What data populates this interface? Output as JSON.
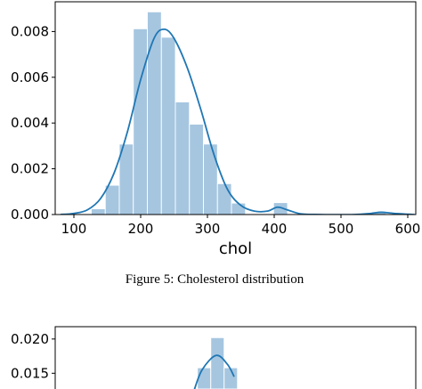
{
  "caption": "Figure 5: Cholesterol distribution",
  "chart_data": [
    {
      "type": "histogram",
      "overlay": "kde line",
      "xlabel": "chol",
      "ylabel": "",
      "xlim": [
        72,
        612
      ],
      "ylim": [
        0,
        0.0093
      ],
      "xticks": [
        "100",
        "200",
        "300",
        "400",
        "500",
        "600"
      ],
      "yticks": [
        "0.000",
        "0.002",
        "0.004",
        "0.006",
        "0.008"
      ],
      "bars": {
        "color": "#a6c6e0",
        "bins": [
          {
            "x0": 126,
            "x1": 147,
            "value": 0.00025
          },
          {
            "x0": 147,
            "x1": 168,
            "value": 0.00128
          },
          {
            "x0": 168,
            "x1": 189,
            "value": 0.00308
          },
          {
            "x0": 189,
            "x1": 210,
            "value": 0.00812
          },
          {
            "x0": 210,
            "x1": 231,
            "value": 0.00886
          },
          {
            "x0": 231,
            "x1": 252,
            "value": 0.00775
          },
          {
            "x0": 252,
            "x1": 273,
            "value": 0.00492
          },
          {
            "x0": 273,
            "x1": 294,
            "value": 0.00395
          },
          {
            "x0": 294,
            "x1": 315,
            "value": 0.00308
          },
          {
            "x0": 315,
            "x1": 336,
            "value": 0.00135
          },
          {
            "x0": 336,
            "x1": 357,
            "value": 0.0005
          },
          {
            "x0": 357,
            "x1": 378,
            "value": 0.0
          },
          {
            "x0": 378,
            "x1": 399,
            "value": 0.0
          },
          {
            "x0": 399,
            "x1": 420,
            "value": 0.00052
          },
          {
            "x0": 546,
            "x1": 567,
            "value": 0.00012
          }
        ]
      },
      "kde": {
        "color": "#1f77b4",
        "points": [
          [
            80,
            0.0
          ],
          [
            100,
            5e-05
          ],
          [
            120,
            0.0002
          ],
          [
            140,
            0.0007
          ],
          [
            160,
            0.0018
          ],
          [
            180,
            0.0036
          ],
          [
            200,
            0.0059
          ],
          [
            220,
            0.0077
          ],
          [
            235,
            0.0081
          ],
          [
            250,
            0.0077
          ],
          [
            270,
            0.0064
          ],
          [
            290,
            0.0046
          ],
          [
            310,
            0.0026
          ],
          [
            330,
            0.0011
          ],
          [
            350,
            0.0004
          ],
          [
            370,
            0.00015
          ],
          [
            390,
            0.00015
          ],
          [
            405,
            0.00032
          ],
          [
            420,
            0.0002
          ],
          [
            440,
            3e-05
          ],
          [
            470,
            0.0
          ],
          [
            520,
            0.0
          ],
          [
            545,
            5e-05
          ],
          [
            560,
            0.0001
          ],
          [
            580,
            5e-05
          ],
          [
            610,
            0.0
          ]
        ]
      }
    },
    {
      "type": "histogram",
      "overlay": "kde line",
      "xlabel": "",
      "ylabel": "",
      "ylim": [
        0,
        0.0218
      ],
      "yticks": [
        "0.020",
        "0.015"
      ],
      "bars": {
        "color": "#a6c6e0",
        "bins": [
          {
            "x0": 285,
            "x1": 305,
            "value": 0.0158
          },
          {
            "x0": 305,
            "x1": 325,
            "value": 0.0202
          },
          {
            "x0": 325,
            "x1": 345,
            "value": 0.0158
          }
        ]
      },
      "kde": {
        "color": "#1f77b4",
        "points": [
          [
            280,
            0.0125
          ],
          [
            292,
            0.0155
          ],
          [
            313,
            0.0176
          ],
          [
            330,
            0.0163
          ],
          [
            340,
            0.0145
          ]
        ]
      }
    }
  ]
}
